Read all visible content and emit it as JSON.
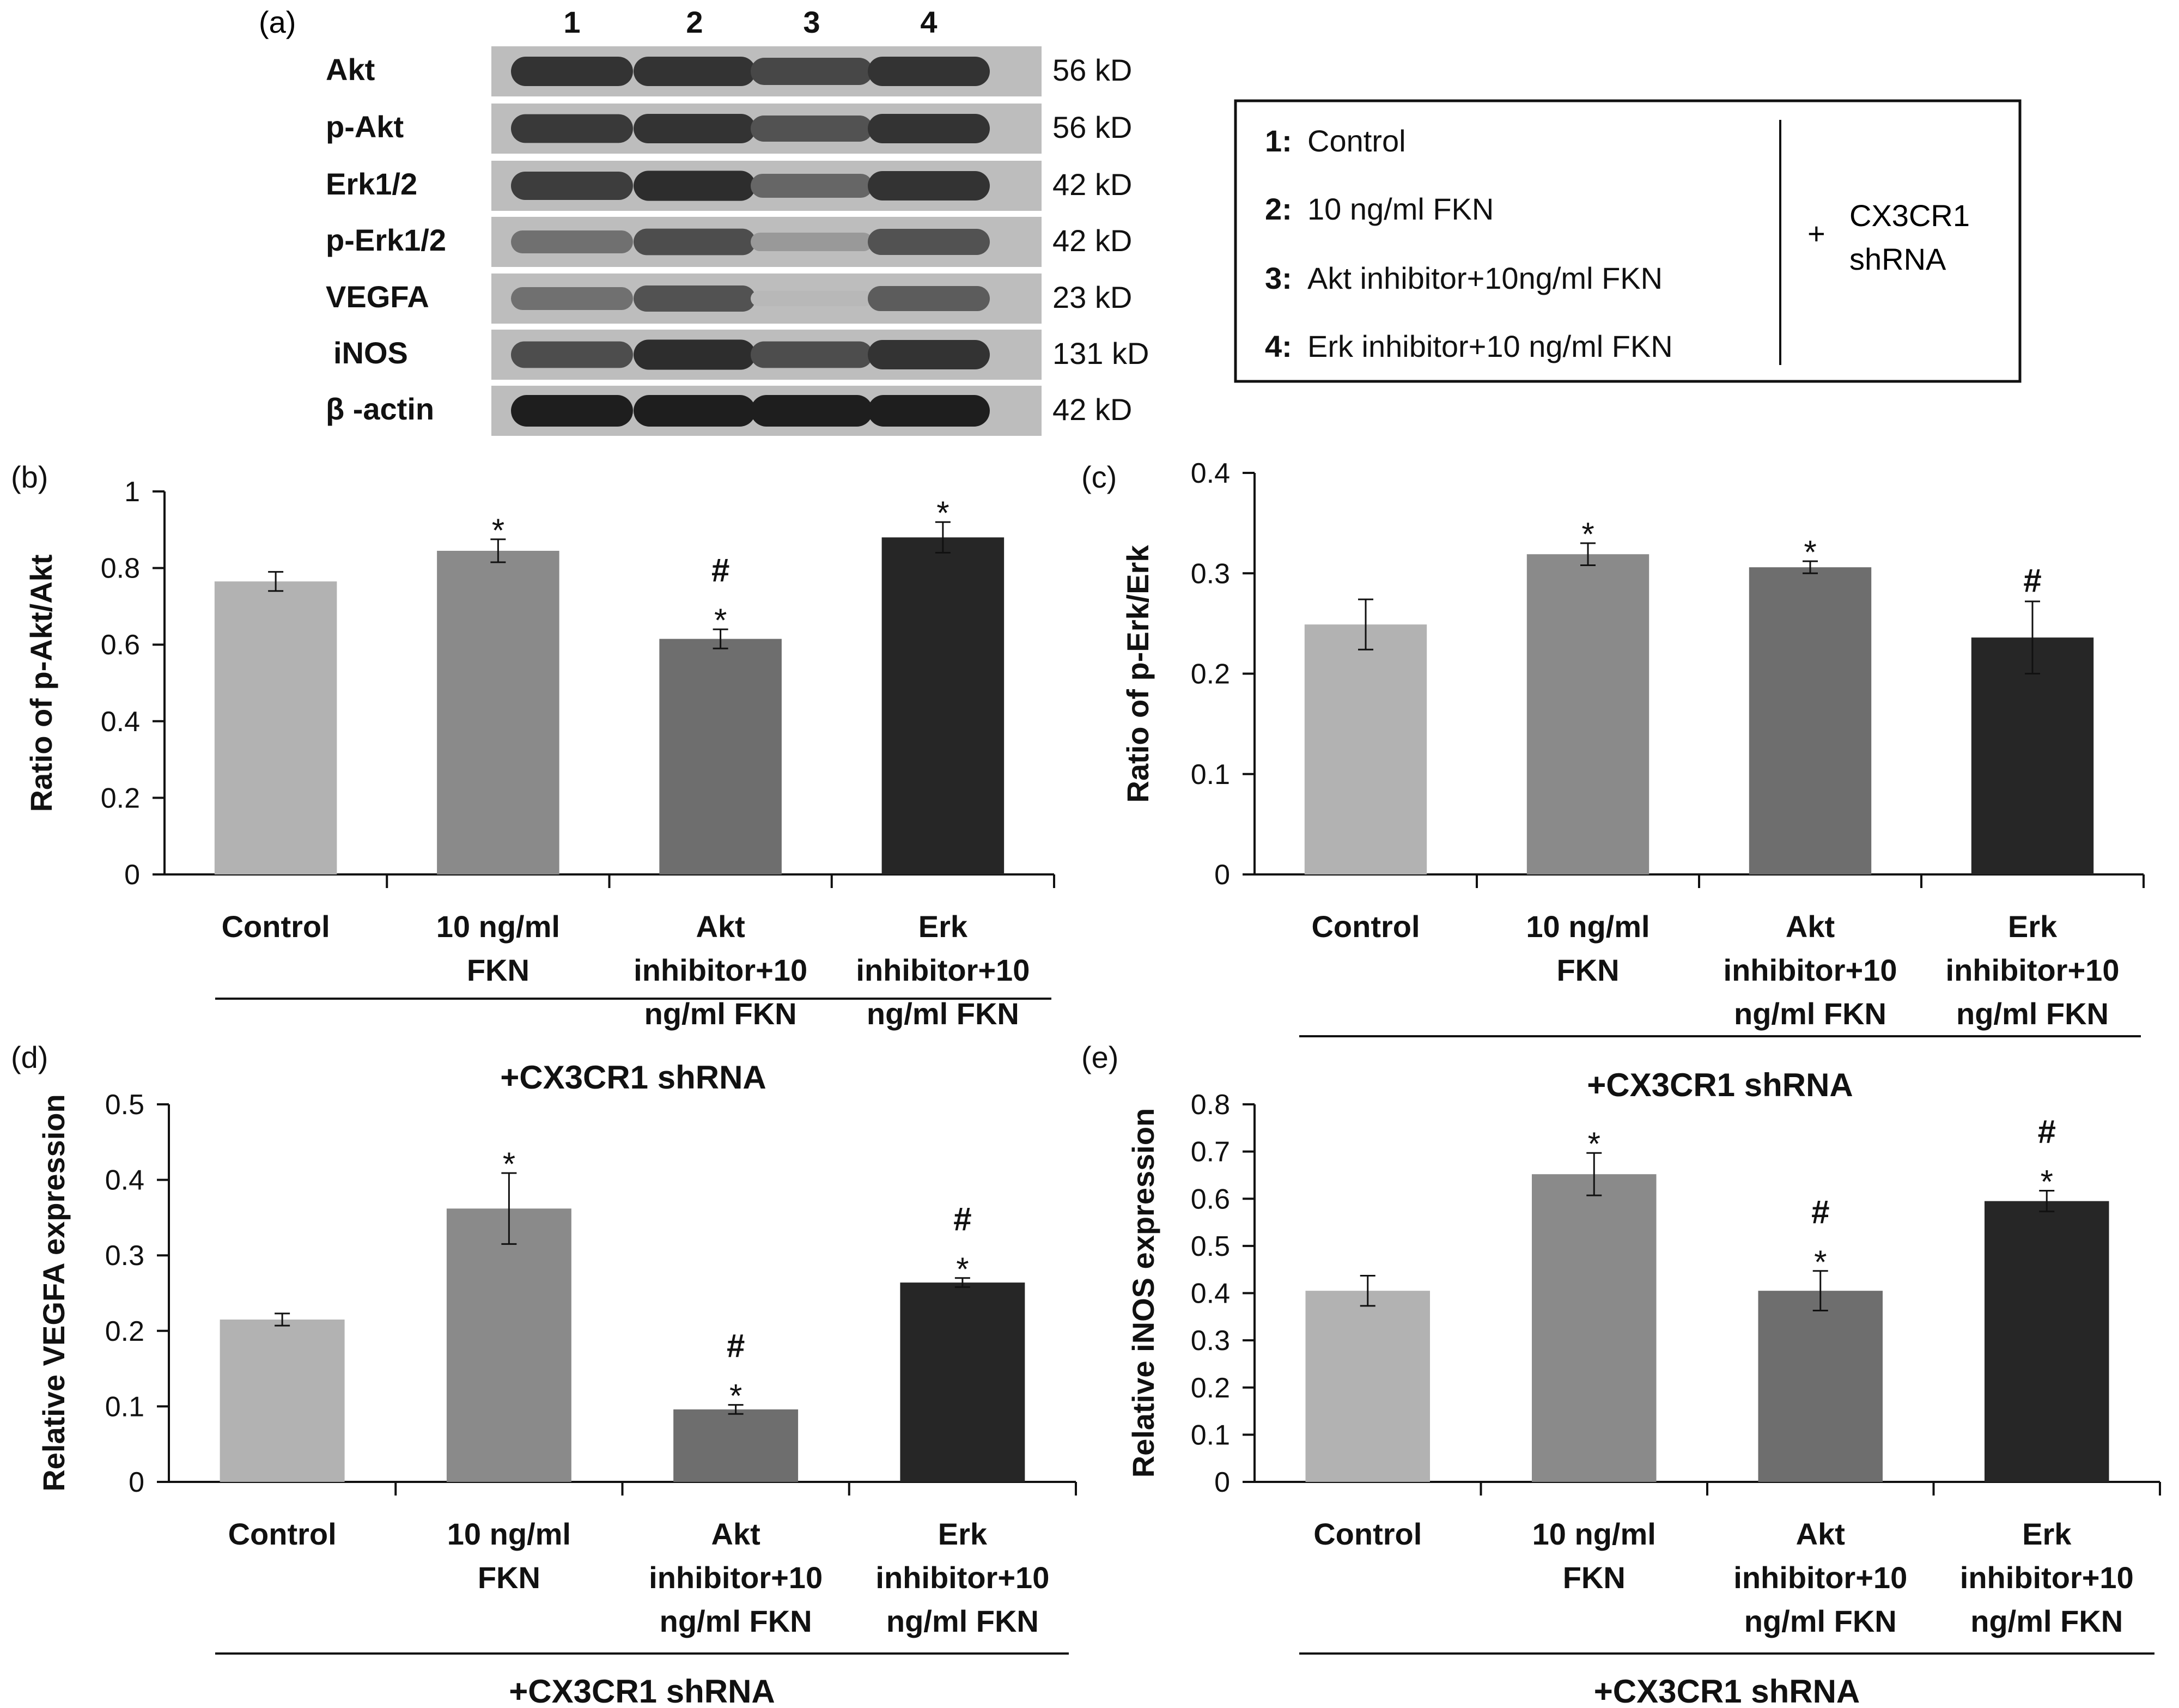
{
  "panel_a": {
    "panel_label": "(a)",
    "lane_numbers": [
      "1",
      "2",
      "3",
      "4"
    ],
    "rows": [
      {
        "protein": "Akt",
        "size": "56 kD",
        "intensity": [
          0.85,
          0.85,
          0.75,
          0.85
        ]
      },
      {
        "protein": "p-Akt",
        "size": "56 kD",
        "intensity": [
          0.82,
          0.85,
          0.7,
          0.85
        ]
      },
      {
        "protein": "Erk1/2",
        "size": "42 kD",
        "intensity": [
          0.8,
          0.88,
          0.6,
          0.85
        ]
      },
      {
        "protein": "p-Erk1/2",
        "size": "42 kD",
        "intensity": [
          0.55,
          0.72,
          0.35,
          0.7
        ]
      },
      {
        "protein": "VEGFA",
        "size": "23 kD",
        "intensity": [
          0.55,
          0.7,
          0.2,
          0.65
        ]
      },
      {
        "protein": "iNOS",
        "size": "131 kD",
        "intensity": [
          0.72,
          0.88,
          0.72,
          0.85
        ]
      },
      {
        "protein": "β -actin",
        "size": "42 kD",
        "intensity": [
          0.95,
          0.95,
          0.95,
          0.95
        ]
      }
    ],
    "legend": {
      "items": [
        {
          "num": "1:",
          "text": "Control"
        },
        {
          "num": "2:",
          "text": "10 ng/ml FKN"
        },
        {
          "num": "3:",
          "text": "Akt inhibitor+10ng/ml FKN"
        },
        {
          "num": "4:",
          "text": "Erk inhibitor+10 ng/ml FKN"
        }
      ],
      "plus": "+",
      "treatment_line1": "CX3CR1",
      "treatment_line2": "shRNA"
    }
  },
  "colors": {
    "bar1": "#b2b2b2",
    "bar2": "#8a8a8a",
    "bar3": "#6e6e6e",
    "bar4": "#262626",
    "axis": "#111111"
  },
  "chart_data": [
    {
      "panel": "(b)",
      "type": "bar",
      "title": "",
      "ylabel": "Ratio of p-Akt/Akt",
      "xlabel": "+CX3CR1 shRNA",
      "categories": [
        "Control",
        "10 ng/ml\nFKN",
        "Akt\ninhibitor+10\nng/ml FKN",
        "Erk\ninhibitor+10\nng/ml FKN"
      ],
      "values": [
        0.765,
        0.845,
        0.615,
        0.88
      ],
      "errors": [
        0.025,
        0.03,
        0.025,
        0.04
      ],
      "annotations": [
        [],
        [
          "*"
        ],
        [
          "#",
          "*"
        ],
        [
          "*"
        ]
      ],
      "ylim": [
        0,
        1
      ],
      "yticks": [
        "0",
        "0.2",
        "0.4",
        "0.6",
        "0.8",
        "1"
      ]
    },
    {
      "panel": "(c)",
      "type": "bar",
      "title": "",
      "ylabel": "Ratio of p-Erk/Erk",
      "xlabel": "+CX3CR1 shRNA",
      "categories": [
        "Control",
        "10 ng/ml\nFKN",
        "Akt\ninhibitor+10\nng/ml FKN",
        "Erk\ninhibitor+10\nng/ml FKN"
      ],
      "values": [
        0.249,
        0.319,
        0.306,
        0.236
      ],
      "errors": [
        0.025,
        0.011,
        0.006,
        0.036
      ],
      "annotations": [
        [],
        [
          "*"
        ],
        [
          "*"
        ],
        [
          "#"
        ]
      ],
      "ylim": [
        0,
        0.4
      ],
      "yticks": [
        "0",
        "0.1",
        "0.2",
        "0.3",
        "0.4"
      ]
    },
    {
      "panel": "(d)",
      "type": "bar",
      "title": "",
      "ylabel": "Relative VEGFA expression",
      "xlabel": "+CX3CR1 shRNA",
      "categories": [
        "Control",
        "10 ng/ml\nFKN",
        "Akt\ninhibitor+10\nng/ml FKN",
        "Erk\ninhibitor+10\nng/ml FKN"
      ],
      "values": [
        0.215,
        0.362,
        0.096,
        0.264
      ],
      "errors": [
        0.008,
        0.047,
        0.006,
        0.006
      ],
      "annotations": [
        [],
        [
          "*"
        ],
        [
          "#",
          "*"
        ],
        [
          "#",
          "*"
        ]
      ],
      "ylim": [
        0,
        0.5
      ],
      "yticks": [
        "0",
        "0.1",
        "0.2",
        "0.3",
        "0.4",
        "0.5"
      ]
    },
    {
      "panel": "(e)",
      "type": "bar",
      "title": "",
      "ylabel": "Relative iNOS expression",
      "xlabel": "+CX3CR1 shRNA",
      "categories": [
        "Control",
        "10 ng/ml\nFKN",
        "Akt\ninhibitor+10\nng/ml FKN",
        "Erk\ninhibitor+10\nng/ml FKN"
      ],
      "values": [
        0.405,
        0.652,
        0.405,
        0.595
      ],
      "errors": [
        0.032,
        0.045,
        0.042,
        0.022
      ],
      "annotations": [
        [],
        [
          "*"
        ],
        [
          "#",
          "*"
        ],
        [
          "#",
          "*"
        ]
      ],
      "ylim": [
        0,
        0.8
      ],
      "yticks": [
        "0",
        "0.1",
        "0.2",
        "0.3",
        "0.4",
        "0.5",
        "0.6",
        "0.7",
        "0.8"
      ]
    }
  ]
}
